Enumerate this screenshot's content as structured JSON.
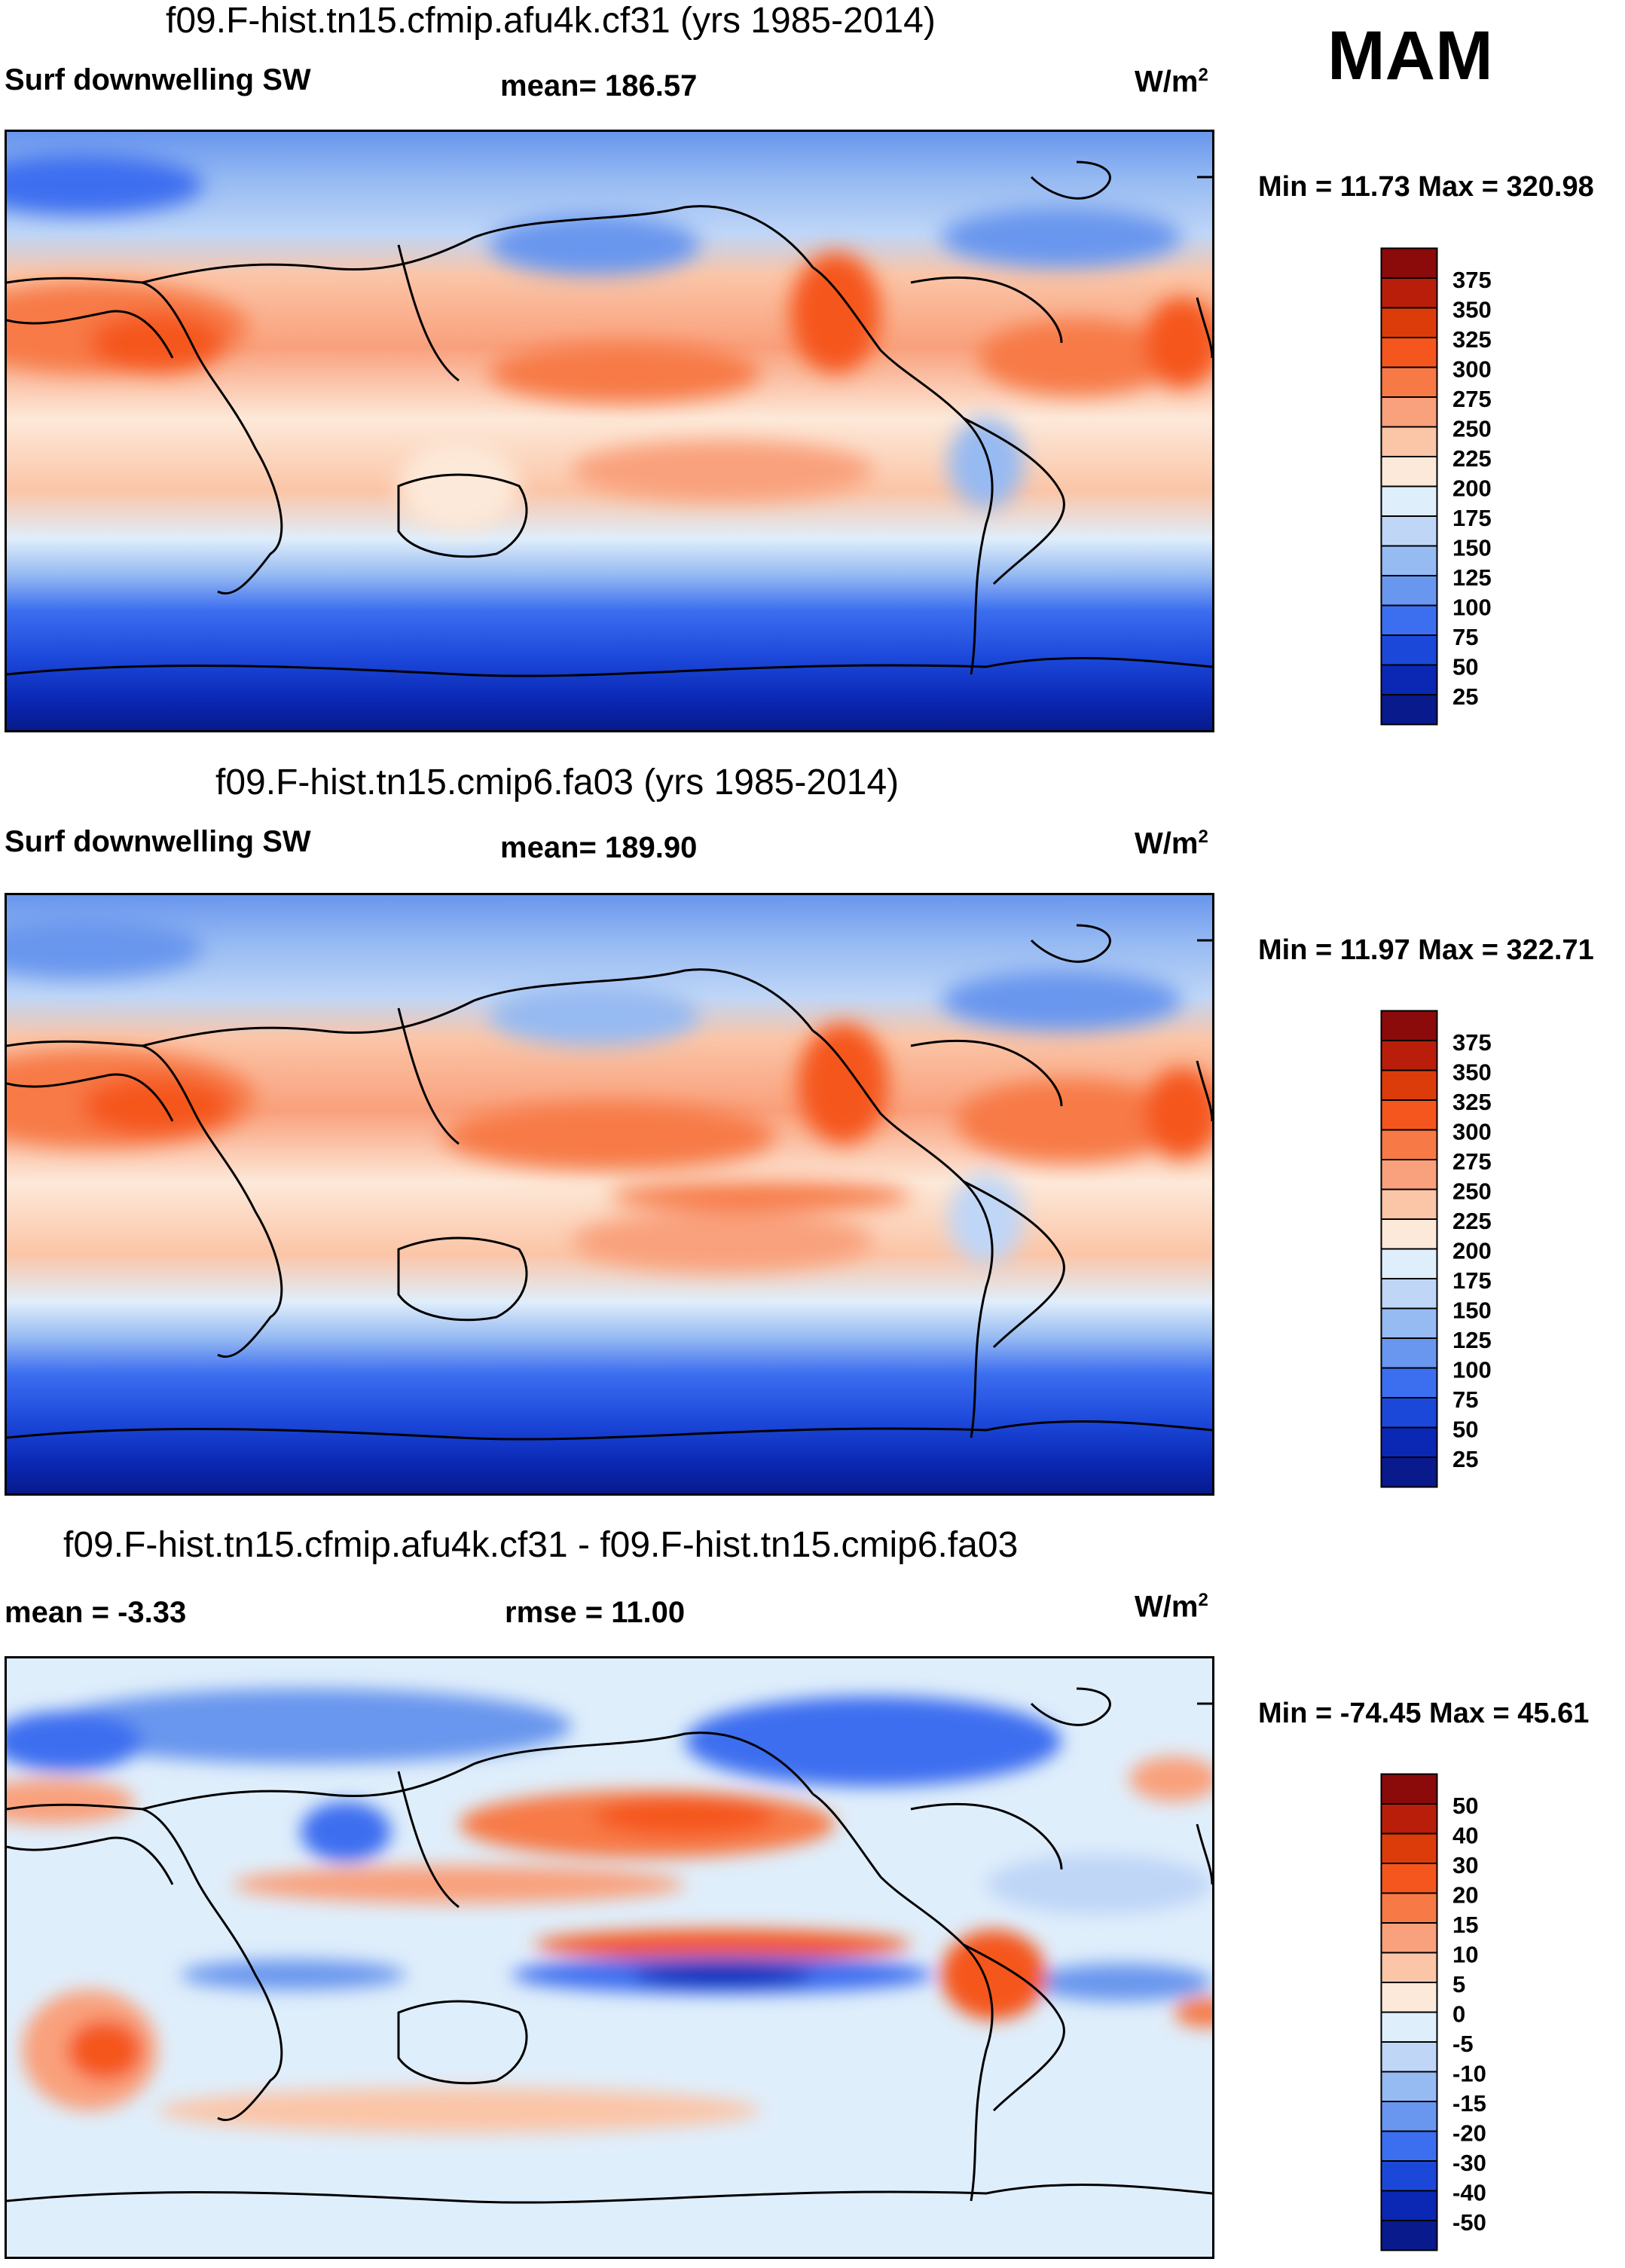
{
  "season": "MAM",
  "panels": [
    {
      "title": "f09.F-hist.tn15.cfmip.afu4k.cf31 (yrs 1985-2014)",
      "left_label": "Surf downwelling SW",
      "center_label": "mean= 186.57",
      "units_base": "W/m",
      "units_exp": "2",
      "minmax": "Min =  11.73 Max = 320.98",
      "kind": "abs"
    },
    {
      "title": "f09.F-hist.tn15.cmip6.fa03 (yrs 1985-2014)",
      "left_label": "Surf downwelling SW",
      "center_label": "mean= 189.90",
      "units_base": "W/m",
      "units_exp": "2",
      "minmax": "Min =  11.97 Max = 322.71",
      "kind": "abs"
    },
    {
      "title": "f09.F-hist.tn15.cfmip.afu4k.cf31 - f09.F-hist.tn15.cmip6.fa03",
      "left_label": "mean =  -3.33",
      "center_label": "rmse =  11.00",
      "units_base": "W/m",
      "units_exp": "2",
      "minmax": "Min = -74.45 Max =  45.61",
      "kind": "diff"
    }
  ],
  "colorbars": {
    "abs": {
      "labels": [
        "375",
        "350",
        "325",
        "300",
        "275",
        "250",
        "225",
        "200",
        "175",
        "150",
        "125",
        "100",
        "75",
        "50",
        "25"
      ],
      "colors": [
        "#8b0a0a",
        "#b81e0a",
        "#dc3c0a",
        "#f5561e",
        "#f77a46",
        "#f9a07c",
        "#fbc5a7",
        "#fde9d9",
        "#dfeefb",
        "#bfd6f7",
        "#96baf2",
        "#6996ee",
        "#3c6ef0",
        "#1c48da",
        "#0a28b4",
        "#081a8c"
      ]
    },
    "diff": {
      "labels": [
        "50",
        "40",
        "30",
        "20",
        "15",
        "10",
        "5",
        "0",
        "-5",
        "-10",
        "-15",
        "-20",
        "-30",
        "-40",
        "-50"
      ],
      "colors": [
        "#8b0a0a",
        "#b81e0a",
        "#dc3c0a",
        "#f5561e",
        "#f77a46",
        "#f9a07c",
        "#fbc5a7",
        "#fde9d9",
        "#dfeefb",
        "#bfd6f7",
        "#96baf2",
        "#6996ee",
        "#3c6ef0",
        "#1c48da",
        "#0a28b4",
        "#081a8c"
      ]
    }
  },
  "chart_data": {
    "type": "heatmap",
    "variable": "Surf downwelling SW",
    "units": "W/m2",
    "season": "MAM",
    "maps": [
      {
        "case": "f09.F-hist.tn15.cfmip.afu4k.cf31",
        "years": "1985-2014",
        "mean": 186.57,
        "min": 11.73,
        "max": 320.98
      },
      {
        "case": "f09.F-hist.tn15.cmip6.fa03",
        "years": "1985-2014",
        "mean": 189.9,
        "min": 11.97,
        "max": 322.71
      },
      {
        "case": "difference",
        "mean": -3.33,
        "rmse": 11.0,
        "min": -74.45,
        "max": 45.61
      }
    ],
    "abs_levels": [
      25,
      50,
      75,
      100,
      125,
      150,
      175,
      200,
      225,
      250,
      275,
      300,
      325,
      350,
      375
    ],
    "diff_levels": [
      -50,
      -40,
      -30,
      -20,
      -15,
      -10,
      -5,
      0,
      5,
      10,
      15,
      20,
      30,
      40,
      50
    ]
  }
}
